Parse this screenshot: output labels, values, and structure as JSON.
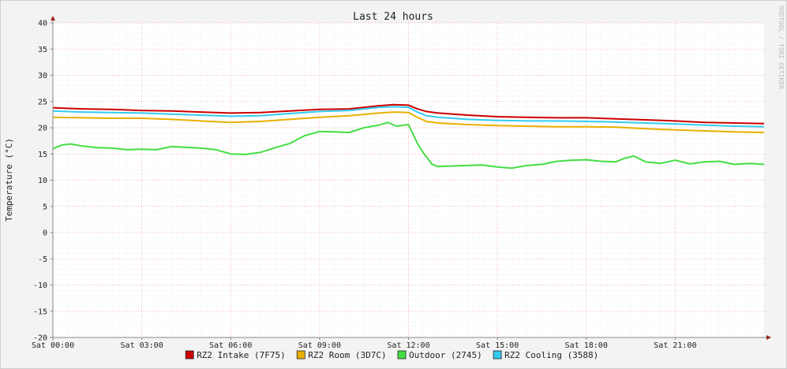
{
  "chart_data": {
    "type": "line",
    "title": "Last 24 hours",
    "ylabel": "Temperature (°C)",
    "xlabel": "",
    "ylim": [
      -20,
      40
    ],
    "xlim": [
      0,
      24
    ],
    "grid": true,
    "legend_position": "bottom",
    "watermark": "RRDTOOL / TOBI OETIKER",
    "y_ticks": [
      {
        "value": 40,
        "label": "40"
      },
      {
        "value": 35,
        "label": "35"
      },
      {
        "value": 30,
        "label": "30"
      },
      {
        "value": 25,
        "label": "25"
      },
      {
        "value": 20,
        "label": "20"
      },
      {
        "value": 15,
        "label": "15"
      },
      {
        "value": 10,
        "label": "10"
      },
      {
        "value": 5,
        "label": "5"
      },
      {
        "value": 0,
        "label": "0"
      },
      {
        "value": -5,
        "label": "-5"
      },
      {
        "value": -10,
        "label": "-10"
      },
      {
        "value": -15,
        "label": "-15"
      },
      {
        "value": -20,
        "label": "-20"
      }
    ],
    "x_ticks": [
      {
        "value": 0,
        "label": "Sat 00:00"
      },
      {
        "value": 3,
        "label": "Sat 03:00"
      },
      {
        "value": 6,
        "label": "Sat 06:00"
      },
      {
        "value": 9,
        "label": "Sat 09:00"
      },
      {
        "value": 12,
        "label": "Sat 12:00"
      },
      {
        "value": 15,
        "label": "Sat 15:00"
      },
      {
        "value": 18,
        "label": "Sat 18:00"
      },
      {
        "value": 21,
        "label": "Sat 21:00"
      }
    ],
    "series": [
      {
        "name": "RZ2 Intake (7F75)",
        "color": "#cc0000",
        "x": [
          0,
          1,
          2,
          3,
          4,
          5,
          6,
          7,
          8,
          9,
          10,
          11,
          11.5,
          12,
          12.3,
          12.6,
          13,
          14,
          15,
          16,
          17,
          18,
          19,
          20,
          21,
          22,
          23,
          24
        ],
        "y": [
          23.8,
          23.6,
          23.5,
          23.3,
          23.2,
          23.0,
          22.8,
          22.9,
          23.2,
          23.5,
          23.6,
          24.2,
          24.4,
          24.3,
          23.6,
          23.1,
          22.8,
          22.4,
          22.1,
          22.0,
          21.9,
          21.9,
          21.7,
          21.5,
          21.3,
          21.0,
          20.9,
          20.8
        ]
      },
      {
        "name": "RZ2 Room (3D7C)",
        "color": "#e8b000",
        "x": [
          0,
          1,
          2,
          3,
          4,
          5,
          6,
          7,
          8,
          9,
          10,
          11,
          11.5,
          12,
          12.3,
          12.6,
          13,
          14,
          15,
          16,
          17,
          18,
          19,
          20,
          21,
          22,
          23,
          24
        ],
        "y": [
          22.0,
          21.9,
          21.8,
          21.8,
          21.6,
          21.3,
          21.0,
          21.2,
          21.6,
          22.0,
          22.3,
          22.8,
          23.0,
          22.9,
          22.0,
          21.2,
          20.9,
          20.6,
          20.4,
          20.3,
          20.2,
          20.2,
          20.1,
          19.8,
          19.6,
          19.4,
          19.2,
          19.1
        ]
      },
      {
        "name": "Outdoor (2745)",
        "color": "#44dd44",
        "x": [
          0,
          0.3,
          0.6,
          1,
          1.5,
          2,
          2.5,
          3,
          3.5,
          4,
          5,
          5.5,
          6,
          6.5,
          7,
          7.5,
          8,
          8.5,
          9,
          9.5,
          10,
          10.5,
          11,
          11.3,
          11.6,
          12,
          12.3,
          12.5,
          12.8,
          13,
          14,
          14.5,
          15,
          15.5,
          16,
          16.5,
          17,
          17.5,
          18,
          18.5,
          19,
          19.3,
          19.6,
          20,
          20.5,
          21,
          21.5,
          22,
          22.5,
          23,
          23.5,
          24
        ],
        "y": [
          16.0,
          16.7,
          16.9,
          16.5,
          16.2,
          16.1,
          15.8,
          15.9,
          15.8,
          16.4,
          16.1,
          15.8,
          15.0,
          14.9,
          15.3,
          16.2,
          17.0,
          18.5,
          19.3,
          19.2,
          19.1,
          20.0,
          20.5,
          21.0,
          20.3,
          20.6,
          17.0,
          15.2,
          13.0,
          12.6,
          12.8,
          12.9,
          12.5,
          12.3,
          12.8,
          13.0,
          13.6,
          13.8,
          13.9,
          13.6,
          13.5,
          14.2,
          14.6,
          13.5,
          13.2,
          13.8,
          13.1,
          13.5,
          13.6,
          13.0,
          13.2,
          13.0
        ]
      },
      {
        "name": "RZ2 Cooling (3588)",
        "color": "#33ccee",
        "x": [
          0,
          1,
          2,
          3,
          4,
          5,
          6,
          7,
          8,
          9,
          10,
          11,
          11.5,
          12,
          12.3,
          12.6,
          13,
          14,
          15,
          16,
          17,
          18,
          19,
          20,
          21,
          22,
          23,
          24
        ],
        "y": [
          23.2,
          23.0,
          22.9,
          22.8,
          22.6,
          22.4,
          22.2,
          22.3,
          22.7,
          23.1,
          23.3,
          23.9,
          24.0,
          23.9,
          23.0,
          22.3,
          22.0,
          21.6,
          21.4,
          21.3,
          21.3,
          21.2,
          21.1,
          20.9,
          20.7,
          20.5,
          20.3,
          20.2
        ]
      }
    ]
  }
}
